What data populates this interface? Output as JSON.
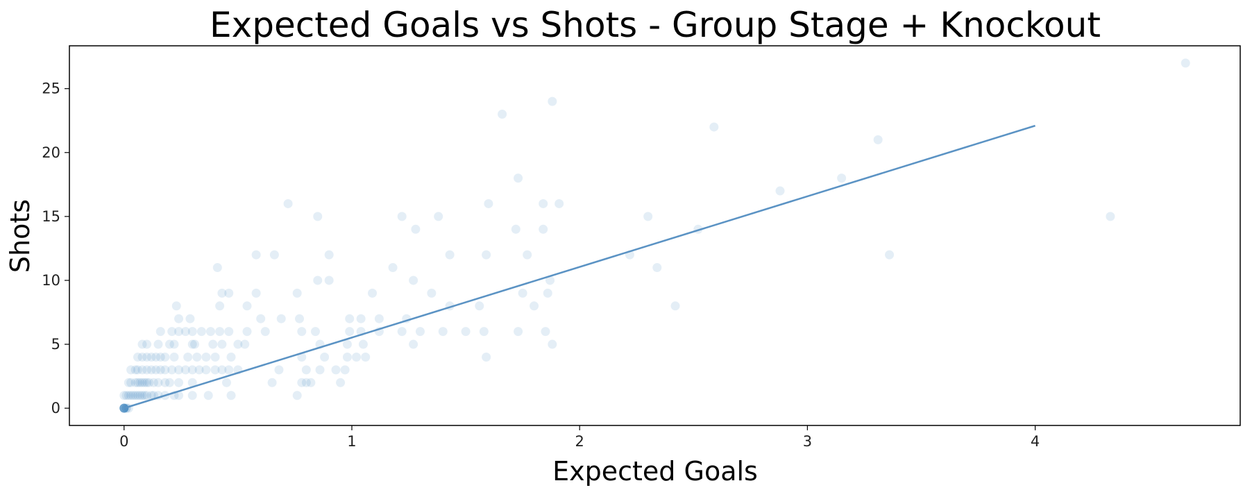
{
  "chart_data": {
    "type": "scatter",
    "title": "Expected Goals vs Shots - Group Stage + Knockout",
    "xlabel": "Expected Goals",
    "ylabel": "Shots",
    "xlim": [
      -0.24,
      4.9
    ],
    "ylim": [
      -1.35,
      28.35
    ],
    "xticks": [
      0,
      1,
      2,
      3,
      4
    ],
    "yticks": [
      0,
      5,
      10,
      15,
      20,
      25
    ],
    "grid": false,
    "legend": "none",
    "marker_color": "#1f77b4",
    "line_color": "#5b93c4",
    "series": [
      {
        "type": "scatter",
        "points": [
          [
            0,
            0
          ],
          [
            0,
            0
          ],
          [
            0,
            0
          ],
          [
            0,
            0
          ],
          [
            0,
            0
          ],
          [
            0,
            0
          ],
          [
            0,
            0
          ],
          [
            0,
            0
          ],
          [
            0.01,
            0
          ],
          [
            0.01,
            0
          ],
          [
            0.02,
            0
          ],
          [
            0,
            1
          ],
          [
            0.01,
            1
          ],
          [
            0.02,
            1
          ],
          [
            0.03,
            1
          ],
          [
            0.04,
            1
          ],
          [
            0.05,
            1
          ],
          [
            0.06,
            1
          ],
          [
            0.07,
            1
          ],
          [
            0.08,
            1
          ],
          [
            0.09,
            1
          ],
          [
            0.1,
            1
          ],
          [
            0.12,
            1
          ],
          [
            0.13,
            1
          ],
          [
            0.15,
            1
          ],
          [
            0.18,
            1
          ],
          [
            0.22,
            1
          ],
          [
            0.24,
            1
          ],
          [
            0.3,
            1
          ],
          [
            0.37,
            1
          ],
          [
            0.47,
            1
          ],
          [
            0.76,
            1
          ],
          [
            0.02,
            2
          ],
          [
            0.03,
            2
          ],
          [
            0.05,
            2
          ],
          [
            0.06,
            2
          ],
          [
            0.07,
            2
          ],
          [
            0.08,
            2
          ],
          [
            0.09,
            2
          ],
          [
            0.1,
            2
          ],
          [
            0.11,
            2
          ],
          [
            0.13,
            2
          ],
          [
            0.15,
            2
          ],
          [
            0.18,
            2
          ],
          [
            0.2,
            2
          ],
          [
            0.24,
            2
          ],
          [
            0.3,
            2
          ],
          [
            0.45,
            2
          ],
          [
            0.65,
            2
          ],
          [
            0.78,
            2
          ],
          [
            0.8,
            2
          ],
          [
            0.82,
            2
          ],
          [
            0.95,
            2
          ],
          [
            0.03,
            3
          ],
          [
            0.05,
            3
          ],
          [
            0.06,
            3
          ],
          [
            0.08,
            3
          ],
          [
            0.1,
            3
          ],
          [
            0.12,
            3
          ],
          [
            0.14,
            3
          ],
          [
            0.16,
            3
          ],
          [
            0.18,
            3
          ],
          [
            0.21,
            3
          ],
          [
            0.24,
            3
          ],
          [
            0.27,
            3
          ],
          [
            0.3,
            3
          ],
          [
            0.33,
            3
          ],
          [
            0.36,
            3
          ],
          [
            0.4,
            3
          ],
          [
            0.43,
            3
          ],
          [
            0.46,
            3
          ],
          [
            0.5,
            3
          ],
          [
            0.68,
            3
          ],
          [
            0.8,
            3
          ],
          [
            0.86,
            3
          ],
          [
            0.93,
            3
          ],
          [
            0.97,
            3
          ],
          [
            0.06,
            4
          ],
          [
            0.08,
            4
          ],
          [
            0.1,
            4
          ],
          [
            0.12,
            4
          ],
          [
            0.14,
            4
          ],
          [
            0.16,
            4
          ],
          [
            0.18,
            4
          ],
          [
            0.22,
            4
          ],
          [
            0.28,
            4
          ],
          [
            0.32,
            4
          ],
          [
            0.36,
            4
          ],
          [
            0.4,
            4
          ],
          [
            0.47,
            4
          ],
          [
            0.78,
            4
          ],
          [
            0.88,
            4
          ],
          [
            0.98,
            4
          ],
          [
            1.02,
            4
          ],
          [
            1.06,
            4
          ],
          [
            1.59,
            4
          ],
          [
            0.08,
            5
          ],
          [
            0.1,
            5
          ],
          [
            0.15,
            5
          ],
          [
            0.2,
            5
          ],
          [
            0.22,
            5
          ],
          [
            0.3,
            5
          ],
          [
            0.31,
            5
          ],
          [
            0.39,
            5
          ],
          [
            0.43,
            5
          ],
          [
            0.5,
            5
          ],
          [
            0.53,
            5
          ],
          [
            0.86,
            5
          ],
          [
            0.98,
            5
          ],
          [
            1.05,
            5
          ],
          [
            1.27,
            5
          ],
          [
            1.88,
            5
          ],
          [
            0.16,
            6
          ],
          [
            0.21,
            6
          ],
          [
            0.24,
            6
          ],
          [
            0.27,
            6
          ],
          [
            0.3,
            6
          ],
          [
            0.34,
            6
          ],
          [
            0.38,
            6
          ],
          [
            0.42,
            6
          ],
          [
            0.46,
            6
          ],
          [
            0.54,
            6
          ],
          [
            0.62,
            6
          ],
          [
            0.78,
            6
          ],
          [
            0.84,
            6
          ],
          [
            0.99,
            6
          ],
          [
            1.04,
            6
          ],
          [
            1.12,
            6
          ],
          [
            1.22,
            6
          ],
          [
            1.3,
            6
          ],
          [
            1.4,
            6
          ],
          [
            1.5,
            6
          ],
          [
            1.58,
            6
          ],
          [
            1.73,
            6
          ],
          [
            1.85,
            6
          ],
          [
            0.24,
            7
          ],
          [
            0.29,
            7
          ],
          [
            0.6,
            7
          ],
          [
            0.69,
            7
          ],
          [
            0.77,
            7
          ],
          [
            0.99,
            7
          ],
          [
            1.04,
            7
          ],
          [
            1.12,
            7
          ],
          [
            1.24,
            7
          ],
          [
            0.23,
            8
          ],
          [
            0.42,
            8
          ],
          [
            0.54,
            8
          ],
          [
            1.43,
            8
          ],
          [
            1.56,
            8
          ],
          [
            1.8,
            8
          ],
          [
            2.42,
            8
          ],
          [
            0.43,
            9
          ],
          [
            0.46,
            9
          ],
          [
            0.58,
            9
          ],
          [
            0.76,
            9
          ],
          [
            1.09,
            9
          ],
          [
            1.35,
            9
          ],
          [
            1.75,
            9
          ],
          [
            1.86,
            9
          ],
          [
            0.85,
            10
          ],
          [
            0.9,
            10
          ],
          [
            1.27,
            10
          ],
          [
            1.87,
            10
          ],
          [
            0.41,
            11
          ],
          [
            1.18,
            11
          ],
          [
            2.34,
            11
          ],
          [
            0.58,
            12
          ],
          [
            0.66,
            12
          ],
          [
            0.9,
            12
          ],
          [
            1.43,
            12
          ],
          [
            1.59,
            12
          ],
          [
            1.77,
            12
          ],
          [
            2.22,
            12
          ],
          [
            3.36,
            12
          ],
          [
            1.28,
            14
          ],
          [
            1.72,
            14
          ],
          [
            1.84,
            14
          ],
          [
            2.52,
            14
          ],
          [
            0.85,
            15
          ],
          [
            1.22,
            15
          ],
          [
            1.38,
            15
          ],
          [
            2.3,
            15
          ],
          [
            4.33,
            15
          ],
          [
            0.72,
            16
          ],
          [
            1.6,
            16
          ],
          [
            1.84,
            16
          ],
          [
            1.91,
            16
          ],
          [
            2.88,
            17
          ],
          [
            1.73,
            18
          ],
          [
            3.15,
            18
          ],
          [
            3.31,
            21
          ],
          [
            2.59,
            22
          ],
          [
            1.66,
            23
          ],
          [
            1.88,
            24
          ],
          [
            4.66,
            27
          ]
        ]
      },
      {
        "type": "line",
        "points": [
          [
            0,
            0
          ],
          [
            4,
            22.1
          ]
        ]
      }
    ]
  }
}
